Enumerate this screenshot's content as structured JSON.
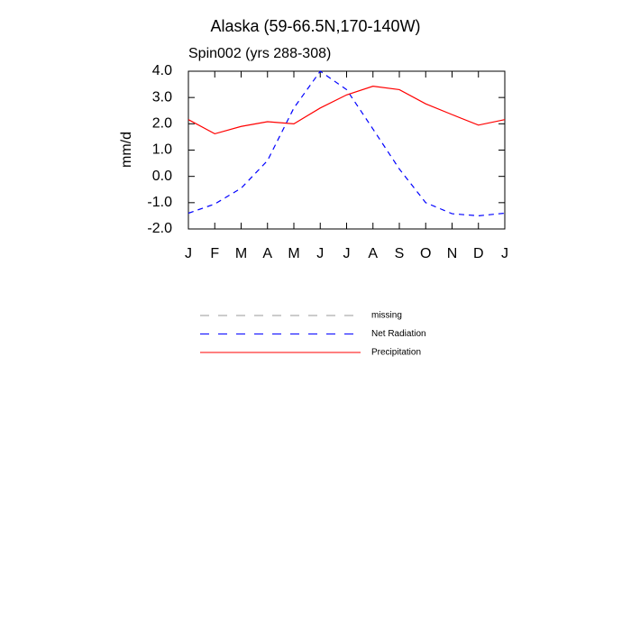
{
  "chart_data": {
    "type": "line",
    "title": "Alaska (59-66.5N,170-140W)",
    "subtitle": "Spin002 (yrs 288-308)",
    "y_label": "mm/d",
    "categories": [
      "J",
      "F",
      "M",
      "A",
      "M",
      "J",
      "J",
      "A",
      "S",
      "O",
      "N",
      "D",
      "J"
    ],
    "series": [
      {
        "name": "missing",
        "color": "#999999",
        "dashed": true,
        "values": [
          null,
          null,
          null,
          null,
          null,
          null,
          null,
          null,
          null,
          null,
          null,
          null,
          null
        ]
      },
      {
        "name": "Net Radiation",
        "color": "#0000ff",
        "dashed": true,
        "values": [
          -1.4,
          -1.05,
          -0.45,
          0.6,
          2.6,
          4.0,
          3.3,
          1.8,
          0.28,
          -1.0,
          -1.42,
          -1.5,
          -1.4
        ]
      },
      {
        "name": "Precipitation",
        "color": "#ff0000",
        "dashed": false,
        "values": [
          2.16,
          1.62,
          1.9,
          2.08,
          2.0,
          2.6,
          3.1,
          3.43,
          3.3,
          2.76,
          2.35,
          1.95,
          2.16
        ]
      }
    ],
    "ylim": [
      -2,
      4
    ],
    "yticks": [
      {
        "value": -2,
        "label": "-2.0"
      },
      {
        "value": -1,
        "label": "-1.0"
      },
      {
        "value": 0,
        "label": "0.0"
      },
      {
        "value": 1,
        "label": "1.0"
      },
      {
        "value": 2,
        "label": "2.0"
      },
      {
        "value": 3,
        "label": "3.0"
      },
      {
        "value": 4,
        "label": "4.0"
      }
    ],
    "grid": false
  }
}
